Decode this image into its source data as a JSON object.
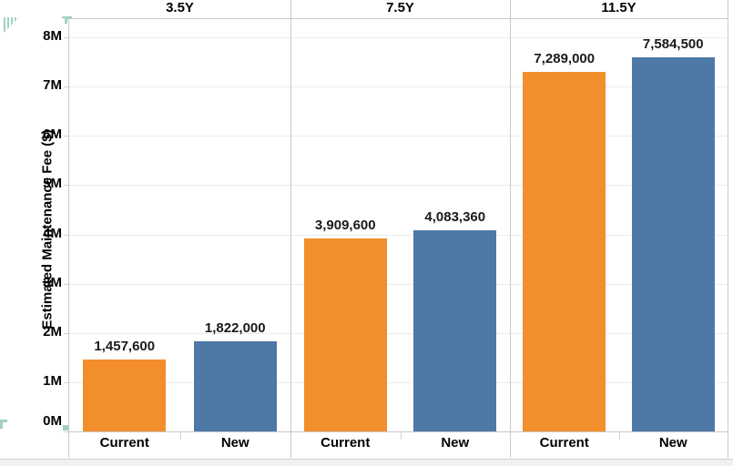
{
  "chart_data": {
    "type": "bar",
    "title": "",
    "ylabel": "Estimated Maintenance Fee ($)",
    "ylim": [
      0,
      8000000
    ],
    "y_tick_labels": [
      "0M",
      "1M",
      "2M",
      "3M",
      "4M",
      "5M",
      "6M",
      "7M",
      "8M"
    ],
    "grid": true,
    "legend": "none",
    "panel_field_labels": [
      "3.5Y",
      "7.5Y",
      "11.5Y"
    ],
    "categories": [
      "Current",
      "New"
    ],
    "series_colors": {
      "Current": "#F28E2B",
      "New": "#4E79A7"
    },
    "panels": [
      {
        "label": "3.5Y",
        "bars": [
          {
            "category": "Current",
            "value": 1457600,
            "display": "1,457,600"
          },
          {
            "category": "New",
            "value": 1822000,
            "display": "1,822,000"
          }
        ]
      },
      {
        "label": "7.5Y",
        "bars": [
          {
            "category": "Current",
            "value": 3909600,
            "display": "3,909,600"
          },
          {
            "category": "New",
            "value": 4083360,
            "display": "4,083,360"
          }
        ]
      },
      {
        "label": "11.5Y",
        "bars": [
          {
            "category": "Current",
            "value": 7289000,
            "display": "7,289,000"
          },
          {
            "category": "New",
            "value": 7584500,
            "display": "7,584,500"
          }
        ]
      }
    ]
  },
  "decorations": {
    "accent_teal": "#9fd2bc"
  }
}
